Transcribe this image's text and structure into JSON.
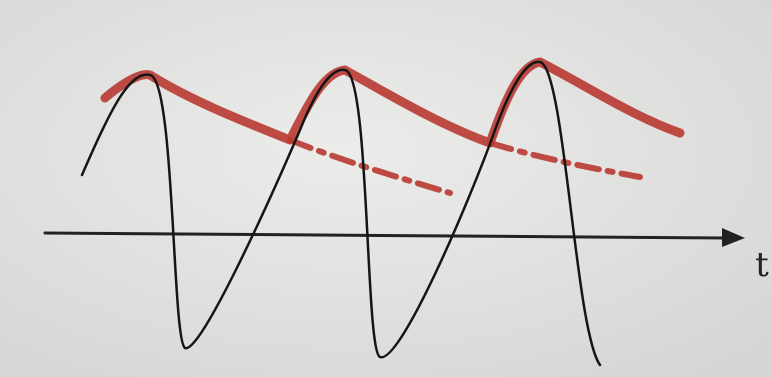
{
  "axis_label": "t"
}
